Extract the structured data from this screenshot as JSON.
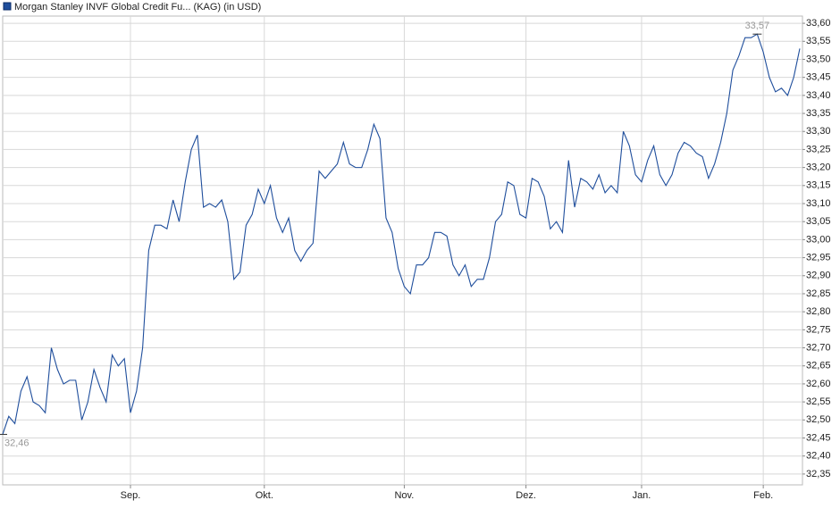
{
  "chart_data": {
    "type": "line",
    "legend": "top-left",
    "grid": true,
    "categories": [
      null,
      null,
      null,
      null,
      null,
      null,
      null,
      null,
      null,
      null,
      null,
      null,
      null,
      null,
      null,
      null,
      null,
      null,
      null,
      null,
      null,
      "Sep.",
      null,
      null,
      null,
      null,
      null,
      null,
      null,
      null,
      null,
      null,
      null,
      null,
      null,
      null,
      null,
      null,
      null,
      null,
      null,
      null,
      null,
      "Okt.",
      null,
      null,
      null,
      null,
      null,
      null,
      null,
      null,
      null,
      null,
      null,
      null,
      null,
      null,
      null,
      null,
      null,
      null,
      null,
      null,
      null,
      null,
      "Nov.",
      null,
      null,
      null,
      null,
      null,
      null,
      null,
      null,
      null,
      null,
      null,
      null,
      null,
      null,
      null,
      null,
      null,
      null,
      null,
      "Dez.",
      null,
      null,
      null,
      null,
      null,
      null,
      null,
      null,
      null,
      null,
      null,
      null,
      null,
      null,
      null,
      null,
      null,
      null,
      "Jan.",
      null,
      null,
      null,
      null,
      null,
      null,
      null,
      null,
      null,
      null,
      null,
      null,
      null,
      null,
      null,
      null,
      null,
      null,
      null,
      "Feb.",
      null,
      null,
      null,
      null,
      null,
      null
    ],
    "series": [
      {
        "name": "Morgan Stanley INVF Global Credit Fu... (KAG) (in USD)",
        "color": "#1f4e9c",
        "values": [
          32.46,
          32.51,
          32.49,
          32.58,
          32.62,
          32.55,
          32.54,
          32.52,
          32.7,
          32.64,
          32.6,
          32.61,
          32.61,
          32.5,
          32.55,
          32.64,
          32.59,
          32.55,
          32.68,
          32.65,
          32.67,
          32.52,
          32.58,
          32.7,
          32.97,
          33.04,
          33.04,
          33.03,
          33.11,
          33.05,
          33.16,
          33.25,
          33.29,
          33.09,
          33.1,
          33.09,
          33.11,
          33.05,
          32.89,
          32.91,
          33.04,
          33.07,
          33.14,
          33.1,
          33.15,
          33.06,
          33.02,
          33.06,
          32.97,
          32.94,
          32.97,
          32.99,
          33.19,
          33.17,
          33.19,
          33.21,
          33.27,
          33.21,
          33.2,
          33.2,
          33.25,
          33.32,
          33.28,
          33.06,
          33.02,
          32.92,
          32.87,
          32.85,
          32.93,
          32.93,
          32.95,
          33.02,
          33.02,
          33.01,
          32.93,
          32.9,
          32.93,
          32.87,
          32.89,
          32.89,
          32.95,
          33.05,
          33.07,
          33.16,
          33.15,
          33.07,
          33.06,
          33.17,
          33.16,
          33.12,
          33.03,
          33.05,
          33.02,
          33.22,
          33.09,
          33.17,
          33.16,
          33.14,
          33.18,
          33.13,
          33.15,
          33.13,
          33.3,
          33.26,
          33.18,
          33.16,
          33.22,
          33.26,
          33.18,
          33.15,
          33.18,
          33.24,
          33.27,
          33.26,
          33.24,
          33.23,
          33.17,
          33.21,
          33.27,
          33.35,
          33.47,
          33.51,
          33.56,
          33.56,
          33.57,
          33.52,
          33.45,
          33.41,
          33.42,
          33.4,
          33.45,
          33.53
        ],
        "value_labels": [
          "32,46",
          null,
          null,
          null,
          null,
          null,
          null,
          null,
          null,
          null,
          null,
          null,
          null,
          null,
          null,
          null,
          null,
          null,
          null,
          null,
          null,
          null,
          null,
          null,
          null,
          null,
          null,
          null,
          null,
          null,
          null,
          null,
          null,
          null,
          null,
          null,
          null,
          null,
          null,
          null,
          null,
          null,
          null,
          null,
          null,
          null,
          null,
          null,
          null,
          null,
          null,
          null,
          null,
          null,
          null,
          null,
          null,
          null,
          null,
          null,
          null,
          null,
          null,
          null,
          null,
          null,
          null,
          null,
          null,
          null,
          null,
          null,
          null,
          null,
          null,
          null,
          null,
          null,
          null,
          null,
          null,
          null,
          null,
          null,
          null,
          null,
          null,
          null,
          null,
          null,
          null,
          null,
          null,
          null,
          null,
          null,
          null,
          null,
          null,
          null,
          null,
          null,
          null,
          null,
          null,
          null,
          null,
          null,
          null,
          null,
          null,
          null,
          null,
          null,
          null,
          null,
          null,
          null,
          null,
          null,
          null,
          null,
          null,
          null,
          "33,57",
          null,
          null,
          null,
          null,
          null,
          null,
          null
        ]
      }
    ],
    "ylim": [
      32.32,
      33.62
    ],
    "yticks": [
      {
        "value": 32.35,
        "label": "32,35"
      },
      {
        "value": 32.4,
        "label": "32,40"
      },
      {
        "value": 32.45,
        "label": "32,45"
      },
      {
        "value": 32.5,
        "label": "32,50"
      },
      {
        "value": 32.55,
        "label": "32,55"
      },
      {
        "value": 32.6,
        "label": "32,60"
      },
      {
        "value": 32.65,
        "label": "32,65"
      },
      {
        "value": 32.7,
        "label": "32,70"
      },
      {
        "value": 32.75,
        "label": "32,75"
      },
      {
        "value": 32.8,
        "label": "32,80"
      },
      {
        "value": 32.85,
        "label": "32,85"
      },
      {
        "value": 32.9,
        "label": "32,90"
      },
      {
        "value": 32.95,
        "label": "32,95"
      },
      {
        "value": 33.0,
        "label": "33,00"
      },
      {
        "value": 33.05,
        "label": "33,05"
      },
      {
        "value": 33.1,
        "label": "33,10"
      },
      {
        "value": 33.15,
        "label": "33,15"
      },
      {
        "value": 33.2,
        "label": "33,20"
      },
      {
        "value": 33.25,
        "label": "33,25"
      },
      {
        "value": 33.3,
        "label": "33,30"
      },
      {
        "value": 33.35,
        "label": "33,35"
      },
      {
        "value": 33.4,
        "label": "33,40"
      },
      {
        "value": 33.45,
        "label": "33,45"
      },
      {
        "value": 33.5,
        "label": "33,50"
      },
      {
        "value": 33.55,
        "label": "33,55"
      },
      {
        "value": 33.6,
        "label": "33,60"
      }
    ]
  }
}
